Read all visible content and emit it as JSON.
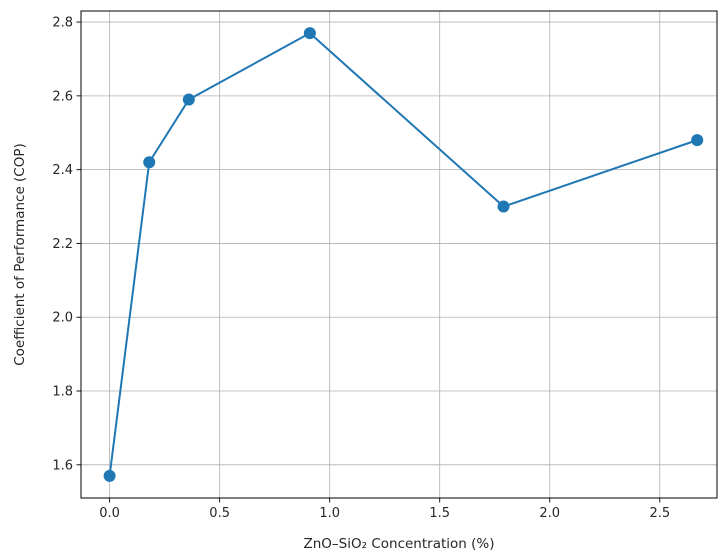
{
  "chart_data": {
    "type": "line",
    "title": "",
    "xlabel": "ZnO–SiO₂ Concentration (%)",
    "ylabel": "Coefficient of Performance (COP)",
    "xlim": [
      -0.13,
      2.76
    ],
    "ylim": [
      1.51,
      2.83
    ],
    "xticks": [
      0.0,
      0.5,
      1.0,
      1.5,
      2.0,
      2.5
    ],
    "xtick_labels": [
      "0.0",
      "0.5",
      "1.0",
      "1.5",
      "2.0",
      "2.5"
    ],
    "yticks": [
      1.6,
      1.8,
      2.0,
      2.2,
      2.4,
      2.6,
      2.8
    ],
    "ytick_labels": [
      "1.6",
      "1.8",
      "2.0",
      "2.2",
      "2.4",
      "2.6",
      "2.8"
    ],
    "grid": true,
    "legend": false,
    "series": [
      {
        "color": "#1f77b4",
        "marker": "circle",
        "x": [
          0.0,
          0.18,
          0.36,
          0.91,
          1.79,
          2.67
        ],
        "y": [
          1.57,
          2.42,
          2.59,
          2.77,
          2.3,
          2.48
        ]
      }
    ]
  }
}
